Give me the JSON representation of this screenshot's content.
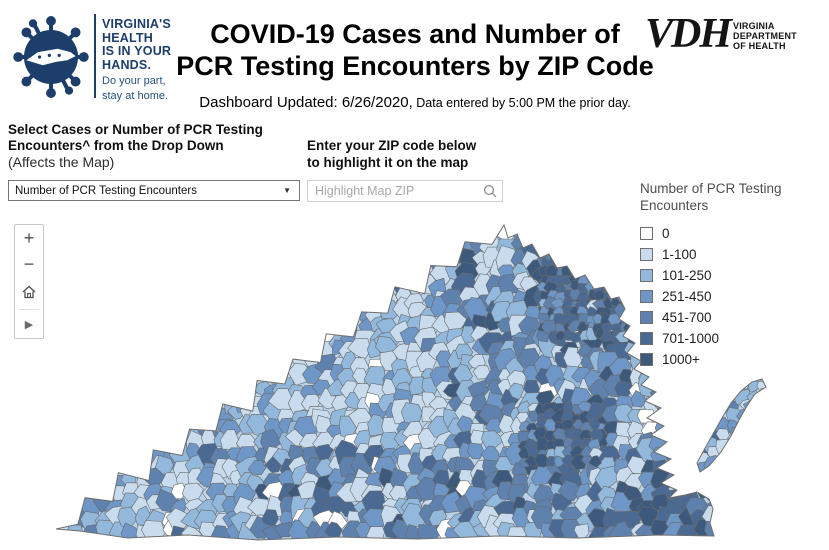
{
  "header": {
    "campaign_logo": {
      "lines": [
        "VIRGINIA'S",
        "HEALTH",
        "IS IN YOUR",
        "HANDS."
      ],
      "tagline_lines": [
        "Do your part,",
        "stay at home."
      ]
    },
    "title_line1": "COVID-19 Cases and Number of",
    "title_line2": "PCR Testing Encounters by ZIP Code",
    "updated_label": "Dashboard Updated: 6/26/2020,",
    "updated_note": " Data entered by 5:00 PM the prior day.",
    "vdh_logo": {
      "acronym": "VDH",
      "name_lines": [
        "VIRGINIA",
        "DEPARTMENT",
        "OF HEALTH"
      ]
    }
  },
  "controls": {
    "metric_select": {
      "label_line1": "Select Cases or Number of PCR Testing",
      "label_line2": "Encounters^ from the Drop Down",
      "sublabel": "(Affects the Map)",
      "value": "Number of PCR Testing Encounters",
      "caret": "▼"
    },
    "zip_search": {
      "label_line1": "Enter your ZIP code below",
      "label_line2": "to highlight it on the map",
      "placeholder": "Highlight Map ZIP"
    }
  },
  "map": {
    "region": "Virginia ZIP code choropleth",
    "toolbar": {
      "zoom_in": "+",
      "zoom_out": "−",
      "home": "home",
      "pan": "▶"
    },
    "border_color": "#6e6e6e",
    "cell_border_color": "#6a6a6a"
  },
  "legend": {
    "title_line1": "Number of PCR Testing",
    "title_line2": "Encounters",
    "items": [
      {
        "label": "0",
        "color": "#ffffff"
      },
      {
        "label": "1-100",
        "color": "#c8dcee"
      },
      {
        "label": "101-250",
        "color": "#92b8dc"
      },
      {
        "label": "251-450",
        "color": "#6e96c6"
      },
      {
        "label": "451-700",
        "color": "#5e82ad"
      },
      {
        "label": "701-1000",
        "color": "#4a6a94"
      },
      {
        "label": "1000+",
        "color": "#3d5a7d"
      }
    ]
  },
  "brand": {
    "navy": "#1d3d6b",
    "black": "#141414"
  }
}
